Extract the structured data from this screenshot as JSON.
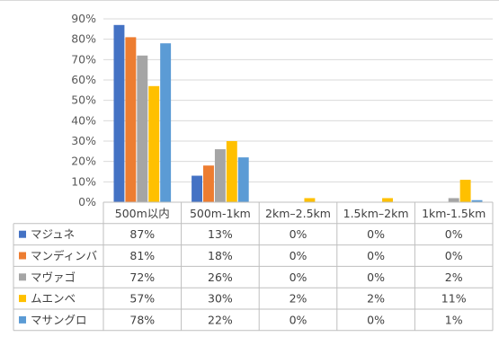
{
  "chart_data": {
    "type": "bar",
    "title": "",
    "xlabel": "",
    "ylabel": "",
    "ylim": [
      0,
      90
    ],
    "yticks": [
      "0%",
      "10%",
      "20%",
      "30%",
      "40%",
      "50%",
      "60%",
      "70%",
      "80%",
      "90%"
    ],
    "grid": true,
    "legend": "data-table",
    "categories": [
      "500m以内",
      "500m-1km",
      "2km–2.5km",
      "1.5km–2km",
      "1km-1.5km"
    ],
    "series": [
      {
        "name": "マジュネ",
        "color": "#4472c4",
        "values": [
          87,
          13,
          0,
          0,
          0
        ],
        "labels": [
          "87%",
          "13%",
          "0%",
          "0%",
          "0%"
        ]
      },
      {
        "name": "マンディンバ",
        "color": "#ed7d31",
        "values": [
          81,
          18,
          0,
          0,
          0
        ],
        "labels": [
          "81%",
          "18%",
          "0%",
          "0%",
          "0%"
        ]
      },
      {
        "name": "マヴァゴ",
        "color": "#a5a5a5",
        "values": [
          72,
          26,
          0,
          0,
          2
        ],
        "labels": [
          "72%",
          "26%",
          "0%",
          "0%",
          "2%"
        ]
      },
      {
        "name": "ムエンベ",
        "color": "#ffc000",
        "values": [
          57,
          30,
          2,
          2,
          11
        ],
        "labels": [
          "57%",
          "30%",
          "2%",
          "2%",
          "11%"
        ]
      },
      {
        "name": "マサングロ",
        "color": "#5b9bd5",
        "values": [
          78,
          22,
          0,
          0,
          1
        ],
        "labels": [
          "78%",
          "22%",
          "0%",
          "0%",
          "1%"
        ]
      }
    ]
  }
}
